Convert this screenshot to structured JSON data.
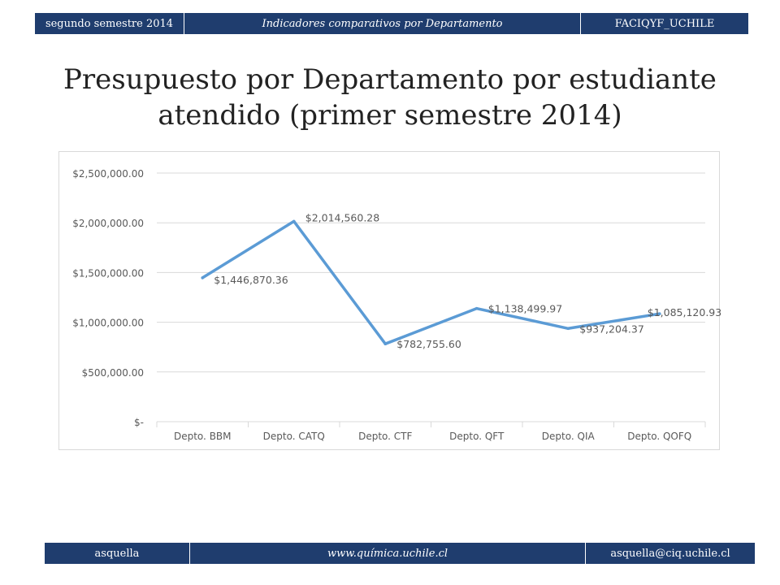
{
  "header": {
    "left": "segundo semestre 2014",
    "center": "Indicadores comparativos por Departamento",
    "right": "FACIQYF_UCHILE"
  },
  "title_line1": "Presupuesto por Departamento por estudiante",
  "title_line2": "atendido (primer semestre 2014)",
  "footer": {
    "left": "asquella",
    "center": "www.química.uchile.cl",
    "right": "asquella@ciq.uchile.cl"
  },
  "chart_data": {
    "type": "line",
    "title": "",
    "xlabel": "",
    "ylabel": "",
    "categories": [
      "Depto. BBM",
      "Depto. CATQ",
      "Depto. CTF",
      "Depto. QFT",
      "Depto. QIA",
      "Depto. QOFQ"
    ],
    "series": [
      {
        "values": [
          1446870.36,
          2014560.28,
          782755.6,
          1138499.97,
          937204.37,
          1085120.93
        ],
        "labels": [
          "$1,446,870.36",
          "$2,014,560.28",
          "$782,755.60",
          "$1,138,499.97",
          "$937,204.37",
          "$1,085,120.93"
        ]
      }
    ],
    "ylim": [
      0,
      2500000
    ],
    "yticks": [
      0,
      500000,
      1000000,
      1500000,
      2000000,
      2500000
    ],
    "ytick_labels": [
      "$-",
      "$500,000.00",
      "$1,000,000.00",
      "$1,500,000.00",
      "$2,000,000.00",
      "$2,500,000.00"
    ],
    "grid": true,
    "line_color": "#5b9bd5",
    "grid_color": "#d9d9d9",
    "text_color": "#595959"
  }
}
